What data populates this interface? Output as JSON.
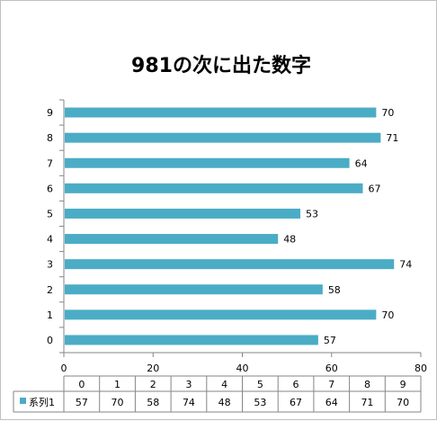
{
  "chart_data": {
    "type": "bar",
    "orientation": "horizontal",
    "title": "981の次に出た数字",
    "categories": [
      "0",
      "1",
      "2",
      "3",
      "4",
      "5",
      "6",
      "7",
      "8",
      "9"
    ],
    "series": [
      {
        "name": "系列1",
        "values": [
          57,
          70,
          58,
          74,
          48,
          53,
          67,
          64,
          71,
          70
        ]
      }
    ],
    "xlim": [
      0,
      80
    ],
    "xticks": [
      "0",
      "20",
      "40",
      "60",
      "80"
    ],
    "grid": false,
    "legend": "data-table",
    "data_table": true,
    "colors": {
      "bar": "#4bacc6",
      "axis": "#868686",
      "table_line": "#868686"
    }
  }
}
